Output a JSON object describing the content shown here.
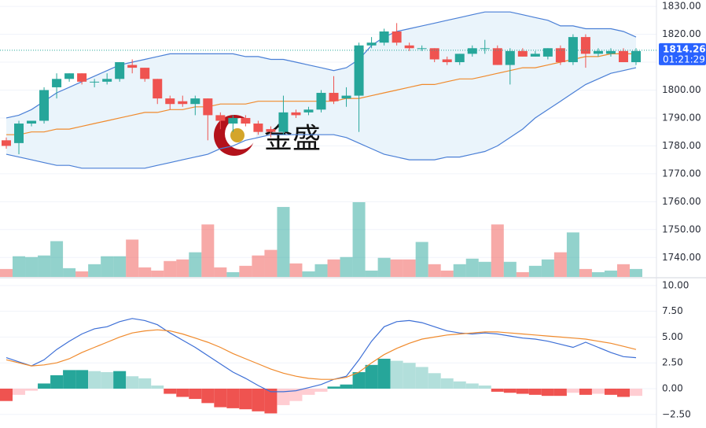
{
  "chart_data": [
    {
      "type": "candlestick",
      "watermark": "金盛",
      "open": [
        1782,
        1781,
        1788,
        1789,
        1801,
        1804,
        1806,
        1803,
        1803,
        1804,
        1809,
        1808,
        1804,
        1797,
        1796,
        1795,
        1797,
        1791,
        1788,
        1790,
        1788,
        1786,
        1785,
        1792,
        1792,
        1793,
        1799,
        1797,
        1798,
        1816,
        1817,
        1821,
        1816,
        1815,
        1815,
        1811,
        1810,
        1813,
        1815,
        1815,
        1809,
        1814,
        1812,
        1812,
        1815,
        1810,
        1819,
        1813,
        1813,
        1814,
        1810
      ],
      "high": [
        1783,
        1789,
        1789,
        1801,
        1806,
        1806,
        1806,
        1804,
        1806,
        1810,
        1811,
        1808,
        1804,
        1798,
        1798,
        1798,
        1797,
        1792,
        1791,
        1791,
        1789,
        1787,
        1798,
        1793,
        1794,
        1800,
        1805,
        1801,
        1817,
        1819,
        1822,
        1824,
        1817,
        1816,
        1815,
        1812,
        1813,
        1816,
        1818,
        1816,
        1815,
        1815,
        1814,
        1815,
        1816,
        1820,
        1820,
        1815,
        1815,
        1815,
        1815
      ],
      "low": [
        1779,
        1777,
        1787,
        1788,
        1797,
        1803,
        1802,
        1801,
        1802,
        1803,
        1806,
        1803,
        1795,
        1793,
        1794,
        1791,
        1782,
        1786,
        1785,
        1787,
        1784,
        1783,
        1784,
        1790,
        1791,
        1792,
        1795,
        1794,
        1785,
        1815,
        1816,
        1816,
        1814,
        1814,
        1810,
        1809,
        1809,
        1812,
        1813,
        1809,
        1802,
        1812,
        1812,
        1811,
        1809,
        1809,
        1808,
        1812,
        1812,
        1810,
        1809
      ],
      "close": [
        1780,
        1788,
        1789,
        1800,
        1804,
        1806,
        1803,
        1803,
        1804,
        1810,
        1808,
        1804,
        1797,
        1795,
        1795,
        1797,
        1791,
        1789,
        1790,
        1788,
        1785,
        1785,
        1792,
        1791,
        1793,
        1799,
        1796,
        1798,
        1816,
        1817,
        1821,
        1817,
        1815,
        1815,
        1811,
        1810,
        1813,
        1815,
        1815,
        1809,
        1814,
        1812,
        1813,
        1815,
        1810,
        1819,
        1813,
        1814,
        1814,
        1810,
        1814
      ],
      "bollinger": {
        "upper": [
          1790,
          1791,
          1793,
          1796,
          1799,
          1801,
          1803,
          1805,
          1807,
          1809,
          1810,
          1811,
          1812,
          1813,
          1813,
          1813,
          1813,
          1813,
          1813,
          1812,
          1812,
          1811,
          1811,
          1810,
          1809,
          1808,
          1807,
          1808,
          1811,
          1816,
          1819,
          1821,
          1822,
          1823,
          1824,
          1825,
          1826,
          1827,
          1828,
          1828,
          1828,
          1827,
          1826,
          1825,
          1823,
          1823,
          1822,
          1822,
          1822,
          1821,
          1819
        ],
        "middle": [
          1784,
          1784,
          1785,
          1785,
          1786,
          1786,
          1787,
          1788,
          1789,
          1790,
          1791,
          1792,
          1792,
          1793,
          1793,
          1794,
          1794,
          1795,
          1795,
          1795,
          1796,
          1796,
          1796,
          1796,
          1796,
          1796,
          1796,
          1797,
          1797,
          1798,
          1799,
          1800,
          1801,
          1802,
          1802,
          1803,
          1804,
          1804,
          1805,
          1806,
          1807,
          1808,
          1808,
          1809,
          1810,
          1811,
          1812,
          1812,
          1813,
          1813,
          1813
        ],
        "lower": [
          1777,
          1776,
          1775,
          1774,
          1773,
          1773,
          1772,
          1772,
          1772,
          1772,
          1772,
          1772,
          1773,
          1774,
          1775,
          1776,
          1777,
          1779,
          1780,
          1782,
          1783,
          1784,
          1784,
          1784,
          1784,
          1784,
          1784,
          1783,
          1781,
          1779,
          1777,
          1776,
          1775,
          1775,
          1775,
          1776,
          1776,
          1777,
          1778,
          1780,
          1783,
          1786,
          1790,
          1793,
          1796,
          1799,
          1802,
          1804,
          1806,
          1807,
          1808
        ]
      },
      "volume": [
        10,
        26,
        25,
        27,
        45,
        11,
        7,
        16,
        26,
        26,
        47,
        12,
        8,
        20,
        22,
        31,
        66,
        12,
        6,
        14,
        27,
        34,
        88,
        17,
        7,
        16,
        22,
        25,
        94,
        8,
        24,
        22,
        22,
        44,
        16,
        8,
        16,
        23,
        19,
        66,
        19,
        6,
        14,
        22,
        31,
        56,
        10,
        6,
        8,
        16,
        10
      ],
      "up_color": "#26a69a",
      "down_color": "#ef5350",
      "band_color": "#4a7fd6",
      "middle_color": "#f08a2c",
      "band_fill": "#eaf4fb",
      "last_price": {
        "value": 1814.26,
        "label": "1814.26"
      },
      "countdown": "01:21:29",
      "ylim": [
        1735,
        1832
      ],
      "yticks": [
        {
          "value": 1740,
          "label": "1740.00"
        },
        {
          "value": 1750,
          "label": "1750.00"
        },
        {
          "value": 1760,
          "label": "1760.00"
        },
        {
          "value": 1770,
          "label": "1770.00"
        },
        {
          "value": 1780,
          "label": "1780.00"
        },
        {
          "value": 1790,
          "label": "1790.00"
        },
        {
          "value": 1800,
          "label": "1800.00"
        },
        {
          "value": 1810,
          "label": "1810.00"
        },
        {
          "value": 1820,
          "label": "1820.00"
        },
        {
          "value": 1830,
          "label": "1830.00"
        }
      ],
      "grid": true
    },
    {
      "type": "macd",
      "histogram": [
        -1.2,
        -0.6,
        -0.2,
        0.5,
        1.3,
        1.8,
        1.8,
        1.7,
        1.6,
        1.7,
        1.2,
        1.0,
        0.3,
        -0.5,
        -0.8,
        -1.0,
        -1.4,
        -1.8,
        -1.9,
        -2.0,
        -2.2,
        -2.4,
        -1.6,
        -1.2,
        -0.6,
        -0.3,
        0.2,
        0.4,
        1.6,
        2.3,
        2.9,
        2.7,
        2.5,
        2.1,
        1.5,
        1.0,
        0.7,
        0.5,
        0.3,
        -0.3,
        -0.4,
        -0.5,
        -0.6,
        -0.7,
        -0.7,
        -0.4,
        -0.6,
        -0.5,
        -0.6,
        -0.8,
        -0.7
      ],
      "dif": [
        3.0,
        2.6,
        2.2,
        2.8,
        3.8,
        4.6,
        5.3,
        5.8,
        6.0,
        6.5,
        6.8,
        6.6,
        6.2,
        5.4,
        4.7,
        4.0,
        3.2,
        2.4,
        1.6,
        1.0,
        0.3,
        -0.3,
        -0.3,
        -0.2,
        0.1,
        0.4,
        0.9,
        1.2,
        2.8,
        4.6,
        6.0,
        6.5,
        6.6,
        6.4,
        6.0,
        5.6,
        5.4,
        5.3,
        5.4,
        5.3,
        5.1,
        4.9,
        4.8,
        4.6,
        4.3,
        4.0,
        4.5,
        4.0,
        3.5,
        3.1,
        3.0
      ],
      "dea": [
        2.8,
        2.5,
        2.2,
        2.3,
        2.5,
        2.9,
        3.5,
        4.0,
        4.5,
        5.0,
        5.4,
        5.6,
        5.7,
        5.6,
        5.3,
        4.9,
        4.5,
        4.0,
        3.4,
        2.9,
        2.4,
        1.9,
        1.5,
        1.2,
        1.0,
        0.9,
        0.9,
        1.1,
        1.6,
        2.5,
        3.3,
        3.9,
        4.4,
        4.8,
        5.0,
        5.2,
        5.3,
        5.4,
        5.5,
        5.5,
        5.4,
        5.3,
        5.2,
        5.1,
        5.0,
        4.9,
        4.8,
        4.6,
        4.4,
        4.1,
        3.8
      ],
      "dif_color": "#3d6fd6",
      "dea_color": "#f08a2c",
      "ylim": [
        -2.9,
        10.6
      ],
      "yticks": [
        {
          "value": -2.5,
          "label": "−2.50"
        },
        {
          "value": 0,
          "label": "0.00"
        },
        {
          "value": 2.5,
          "label": "2.50"
        },
        {
          "value": 5,
          "label": "5.00"
        },
        {
          "value": 7.5,
          "label": "7.50"
        },
        {
          "value": 10,
          "label": "10.00"
        }
      ],
      "grid": true
    }
  ]
}
